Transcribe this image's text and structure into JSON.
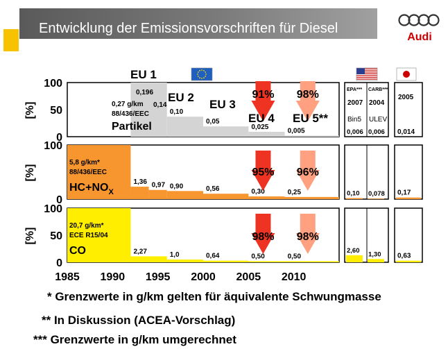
{
  "title": "Entwicklung der Emissionsvorschriften für Diesel",
  "brand": {
    "name": "Audi"
  },
  "colors": {
    "particle": "#d4d4d4",
    "hc": "#f7962f",
    "co": "#ffee00",
    "eu4_arrow": "#ee3322",
    "eu5_arrow": "#ffa080",
    "eu_flag": "#1f5fc0"
  },
  "chart_data": {
    "type": "bar",
    "ylabel": "[%]",
    "x_ticks": [
      "1985",
      "1990",
      "1995",
      "2000",
      "2005",
      "2010"
    ],
    "stages": [
      "EU 1",
      "EU 2",
      "EU 3",
      "EU 4",
      "EU 5**"
    ],
    "us_header": {
      "labels": [
        "EPA***",
        "CARB***"
      ],
      "years": [
        "2007",
        "2004"
      ],
      "standards": [
        "Bin5",
        "ULEV"
      ]
    },
    "japan_header": {
      "year": "2005"
    },
    "panels": [
      {
        "id": "particle",
        "y_ticks": [
          "100",
          "50",
          "0"
        ],
        "name": "Partikel",
        "base_value": "0,27 g/km",
        "directive": "88/436/EEC",
        "steps": [
          {
            "start": 1992,
            "end": 1996,
            "percent": 100,
            "label": ""
          },
          {
            "start": 1996,
            "end": 2000,
            "percent": 37,
            "label": "0,10"
          },
          {
            "start": 2000,
            "end": 2005,
            "percent": 19,
            "label": "0,05"
          },
          {
            "start": 2005,
            "end": 2009,
            "percent": 9,
            "label": "0,025"
          },
          {
            "start": 2009,
            "end": 2015,
            "percent": 2,
            "label": "0,005"
          }
        ],
        "extra_labels": [
          "0,196",
          "0,14"
        ],
        "reductions": [
          {
            "year": 2007,
            "label": "91%"
          },
          {
            "year": 2012,
            "label": "98%"
          }
        ],
        "us": [
          {
            "label": "0,006",
            "percent": 0
          },
          {
            "label": "0,006",
            "percent": 0
          }
        ],
        "japan": {
          "label": "0,014",
          "percent": 0
        }
      },
      {
        "id": "hc_nox",
        "y_ticks": [
          "100",
          "0"
        ],
        "name": "HC+NO",
        "name_sub": "X",
        "base_value": "5,8 g/km*",
        "directive": "88/436/EEC",
        "steps": [
          {
            "start": 1985,
            "end": 1992,
            "percent": 100,
            "label": ""
          },
          {
            "start": 1992,
            "end": 1994,
            "percent": 23,
            "label": "1,36"
          },
          {
            "start": 1994,
            "end": 1996,
            "percent": 17,
            "label": "0,97"
          },
          {
            "start": 1996,
            "end": 2000,
            "percent": 15,
            "label": "0,90"
          },
          {
            "start": 2000,
            "end": 2005,
            "percent": 10,
            "label": "0,56"
          },
          {
            "start": 2005,
            "end": 2009,
            "percent": 5,
            "label": "0,30"
          },
          {
            "start": 2009,
            "end": 2015,
            "percent": 4,
            "label": "0,25"
          }
        ],
        "reductions": [
          {
            "year": 2007,
            "label": "95%"
          },
          {
            "year": 2012,
            "label": "96%"
          }
        ],
        "us": [
          {
            "label": "0,10",
            "percent": 2
          },
          {
            "label": "0,078",
            "percent": 1
          }
        ],
        "japan": {
          "label": "0,17",
          "percent": 3
        }
      },
      {
        "id": "co",
        "y_ticks": [
          "100",
          "50",
          "0"
        ],
        "name": "CO",
        "base_value": "20,7 g/km*",
        "directive": "ECE R15/04",
        "steps": [
          {
            "start": 1985,
            "end": 1992,
            "percent": 100,
            "label": ""
          },
          {
            "start": 1992,
            "end": 1996,
            "percent": 11,
            "label": "2,27"
          },
          {
            "start": 1996,
            "end": 2000,
            "percent": 5,
            "label": "1,0"
          },
          {
            "start": 2000,
            "end": 2005,
            "percent": 3,
            "label": "0,64"
          },
          {
            "start": 2005,
            "end": 2009,
            "percent": 2,
            "label": "0,50"
          },
          {
            "start": 2009,
            "end": 2015,
            "percent": 2,
            "label": "0,50"
          }
        ],
        "reductions": [
          {
            "year": 2007,
            "label": "98%"
          },
          {
            "year": 2012,
            "label": "98%"
          }
        ],
        "us": [
          {
            "label": "2,60",
            "percent": 13
          },
          {
            "label": "1,30",
            "percent": 6
          }
        ],
        "japan": {
          "label": "0,63",
          "percent": 3
        }
      }
    ]
  },
  "footnotes": [
    "* Grenzwerte in g/km gelten für äquivalente Schwungmasse",
    "** In Diskussion (ACEA-Vorschlag)",
    "*** Grenzwerte in g/km umgerechnet"
  ]
}
